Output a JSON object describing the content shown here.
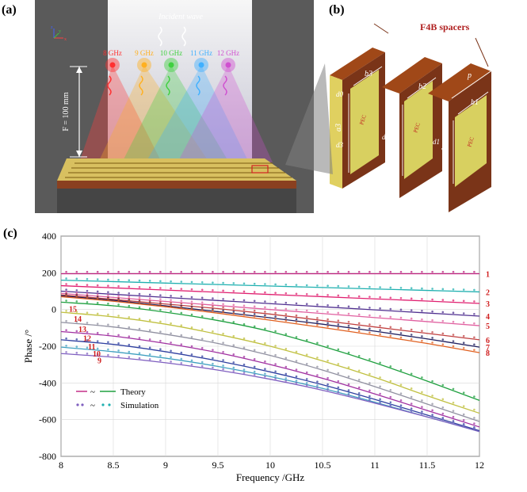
{
  "panel_a": {
    "label": "(a)",
    "incident_wave": "Incident wave",
    "focal_length": "F = 100 mm",
    "axes": {
      "x": "x",
      "y": "y",
      "z": "z"
    },
    "frequencies": [
      {
        "text": "8 GHz",
        "color": "#ff3030"
      },
      {
        "text": "9 GHz",
        "color": "#ffb020"
      },
      {
        "text": "10 GHz",
        "color": "#40d040"
      },
      {
        "text": "11 GHz",
        "color": "#40b0ff"
      },
      {
        "text": "12 GHz",
        "color": "#d050d0"
      }
    ]
  },
  "panel_b": {
    "label": "(b)",
    "spacers": "F4B spacers",
    "pec": "PEC",
    "dims": {
      "b1": "b1",
      "b2": "b2",
      "b3": "b3",
      "a1": "a1",
      "a2": "a2",
      "a3": "a3",
      "p1": "p",
      "p2": "p",
      "d0": "d0",
      "d1": "d1",
      "d2": "d2",
      "d3": "d3"
    }
  },
  "panel_c": {
    "label": "(c)",
    "legend": {
      "theory": "Theory",
      "simulation": "Simulation",
      "tilde": "~"
    },
    "chart_data": {
      "type": "line",
      "xlabel": "Frequency /GHz",
      "ylabel": "Phase /°",
      "xlim": [
        8,
        12
      ],
      "ylim": [
        -800,
        400
      ],
      "xticks": [
        "8",
        "8.5",
        "9",
        "9.5",
        "10",
        "10.5",
        "11",
        "11.5",
        "12"
      ],
      "yticks": [
        "400",
        "200",
        "0",
        "-200",
        "-400",
        "-600",
        "-800"
      ],
      "grid": true,
      "legend_position": "bottom-left",
      "x": [
        8,
        8.5,
        9,
        9.5,
        10,
        10.5,
        11,
        11.5,
        12
      ],
      "series": [
        {
          "name": "1",
          "color": "#c02080",
          "values": [
            195,
            195,
            195,
            195,
            195,
            195,
            195,
            195,
            195
          ]
        },
        {
          "name": "2",
          "color": "#20b0b0",
          "values": [
            160,
            152,
            144,
            136,
            128,
            120,
            112,
            104,
            96
          ]
        },
        {
          "name": "3",
          "color": "#e02070",
          "values": [
            130,
            118,
            106,
            94,
            82,
            70,
            58,
            46,
            33
          ]
        },
        {
          "name": "4",
          "color": "#503090",
          "values": [
            100,
            83,
            66,
            49,
            32,
            15,
            -2,
            -19,
            -36
          ]
        },
        {
          "name": "5",
          "color": "#e060a0",
          "values": [
            88,
            66,
            44,
            22,
            0,
            -22,
            -44,
            -66,
            -88
          ]
        },
        {
          "name": "6",
          "color": "#c04040",
          "values": [
            80,
            55,
            30,
            5,
            -25,
            -60,
            -95,
            -130,
            -165
          ]
        },
        {
          "name": "7",
          "color": "#202060",
          "values": [
            75,
            50,
            20,
            -12,
            -45,
            -80,
            -118,
            -160,
            -205
          ]
        },
        {
          "name": "8",
          "color": "#e06020",
          "values": [
            70,
            45,
            15,
            -20,
            -58,
            -98,
            -140,
            -185,
            -235
          ]
        },
        {
          "name": "15",
          "color": "#20a040",
          "values": [
            40,
            20,
            -15,
            -60,
            -120,
            -200,
            -290,
            -390,
            -495
          ]
        },
        {
          "name": "14",
          "color": "#c0c040",
          "values": [
            -15,
            -40,
            -80,
            -135,
            -200,
            -280,
            -370,
            -470,
            -565
          ]
        },
        {
          "name": "13",
          "color": "#9090a0",
          "values": [
            -70,
            -95,
            -135,
            -185,
            -250,
            -330,
            -420,
            -515,
            -610
          ]
        },
        {
          "name": "12",
          "color": "#a030a0",
          "values": [
            -120,
            -145,
            -185,
            -235,
            -300,
            -375,
            -460,
            -550,
            -640
          ]
        },
        {
          "name": "11",
          "color": "#3040a0",
          "values": [
            -165,
            -190,
            -230,
            -280,
            -340,
            -410,
            -490,
            -575,
            -660
          ]
        },
        {
          "name": "10",
          "color": "#40a0c0",
          "values": [
            -205,
            -230,
            -265,
            -310,
            -365,
            -430,
            -505,
            -585,
            -665
          ]
        },
        {
          "name": "9",
          "color": "#8060c0",
          "values": [
            -240,
            -260,
            -290,
            -330,
            -380,
            -440,
            -510,
            -585,
            -665
          ]
        }
      ]
    }
  }
}
